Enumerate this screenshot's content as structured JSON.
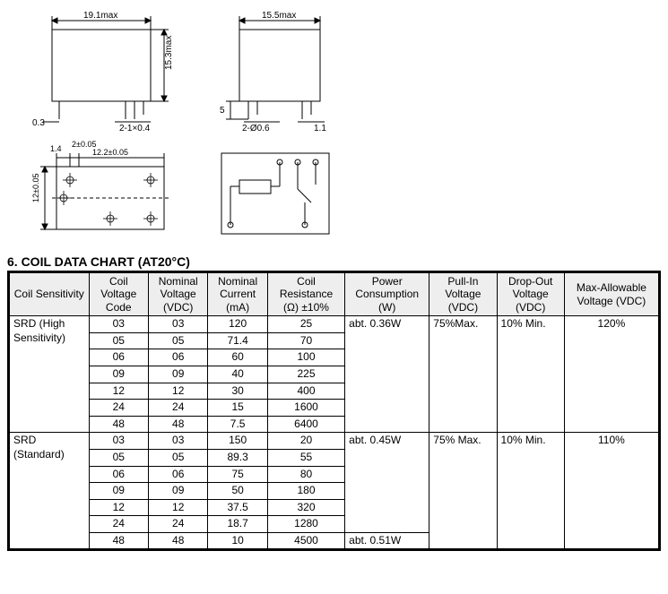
{
  "diagrams": {
    "front": {
      "width_label": "19.1max",
      "height_label": "15.3max",
      "lead_left": "0.3",
      "lead_right": "2-1×0.4"
    },
    "side": {
      "width_label": "15.5max",
      "lead_bottom": "5",
      "pin1": "2-Ø0.6",
      "pin2": "1.1"
    },
    "bottom1": {
      "dim_a": "1.4",
      "dim_b": "2±0.05",
      "dim_c": "12.2±0.05",
      "dim_d": "12±0.05"
    }
  },
  "title": "6. COIL DATA CHART (AT20°C)",
  "columns": [
    "Coil Sensitivity",
    "Coil Voltage Code",
    "Nominal Voltage (VDC)",
    "Nominal Current (mA)",
    "Coil Resistance (Ω) ±10%",
    "Power Consumption (W)",
    "Pull-In Voltage (VDC)",
    "Drop-Out Voltage (VDC)",
    "Max-Allowable Voltage (VDC)"
  ],
  "group_high": {
    "label": "SRD (High Sensitivity)",
    "power": "abt. 0.36W",
    "pullin": "75%Max.",
    "dropout": "10% Min.",
    "maxallow": "120%",
    "rows": [
      [
        "03",
        "03",
        "120",
        "25"
      ],
      [
        "05",
        "05",
        "71.4",
        "70"
      ],
      [
        "06",
        "06",
        "60",
        "100"
      ],
      [
        "09",
        "09",
        "40",
        "225"
      ],
      [
        "12",
        "12",
        "30",
        "400"
      ],
      [
        "24",
        "24",
        "15",
        "1600"
      ],
      [
        "48",
        "48",
        "7.5",
        "6400"
      ]
    ]
  },
  "group_std": {
    "label": "SRD (Standard)",
    "power": "abt. 0.45W",
    "pullin": "75% Max.",
    "dropout": "10% Min.",
    "maxallow": "110%",
    "last_power": "abt. 0.51W",
    "rows": [
      [
        "03",
        "03",
        "150",
        "20"
      ],
      [
        "05",
        "05",
        "89.3",
        "55"
      ],
      [
        "06",
        "06",
        "75",
        "80"
      ],
      [
        "09",
        "09",
        "50",
        "180"
      ],
      [
        "12",
        "12",
        "37.5",
        "320"
      ],
      [
        "24",
        "24",
        "18.7",
        "1280"
      ],
      [
        "48",
        "48",
        "10",
        "4500"
      ]
    ]
  },
  "col_widths": [
    "80",
    "60",
    "60",
    "60",
    "75",
    "85",
    "65",
    "65",
    "90"
  ],
  "colors": {
    "header_bg": "#eeeeee",
    "border": "#000000",
    "bg": "#ffffff"
  }
}
